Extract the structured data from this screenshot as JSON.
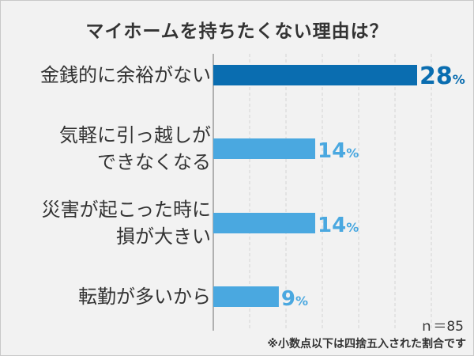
{
  "chart_data": {
    "type": "bar",
    "orientation": "horizontal",
    "title": "マイホームを持ちたくない理由は？",
    "categories": [
      [
        "金銭的に余裕がない"
      ],
      [
        "気軽に引っ越しが",
        "できなくなる"
      ],
      [
        "災害が起こった時に",
        "損が大きい"
      ],
      [
        "転勤が多いから"
      ]
    ],
    "values": [
      28,
      14,
      14,
      9
    ],
    "value_labels": [
      "28",
      "14",
      "14",
      "9"
    ],
    "unit": "%",
    "xlim": [
      0,
      28
    ],
    "grid": "vertical dashed",
    "colors": {
      "highlight": "#0a6db0",
      "normal": "#4aa8e0",
      "grid": "#d4d4d4",
      "axis": "#999999"
    }
  },
  "note_n": "ｎ＝85",
  "footnote": "※小数点以下は四捨五入された割合です"
}
